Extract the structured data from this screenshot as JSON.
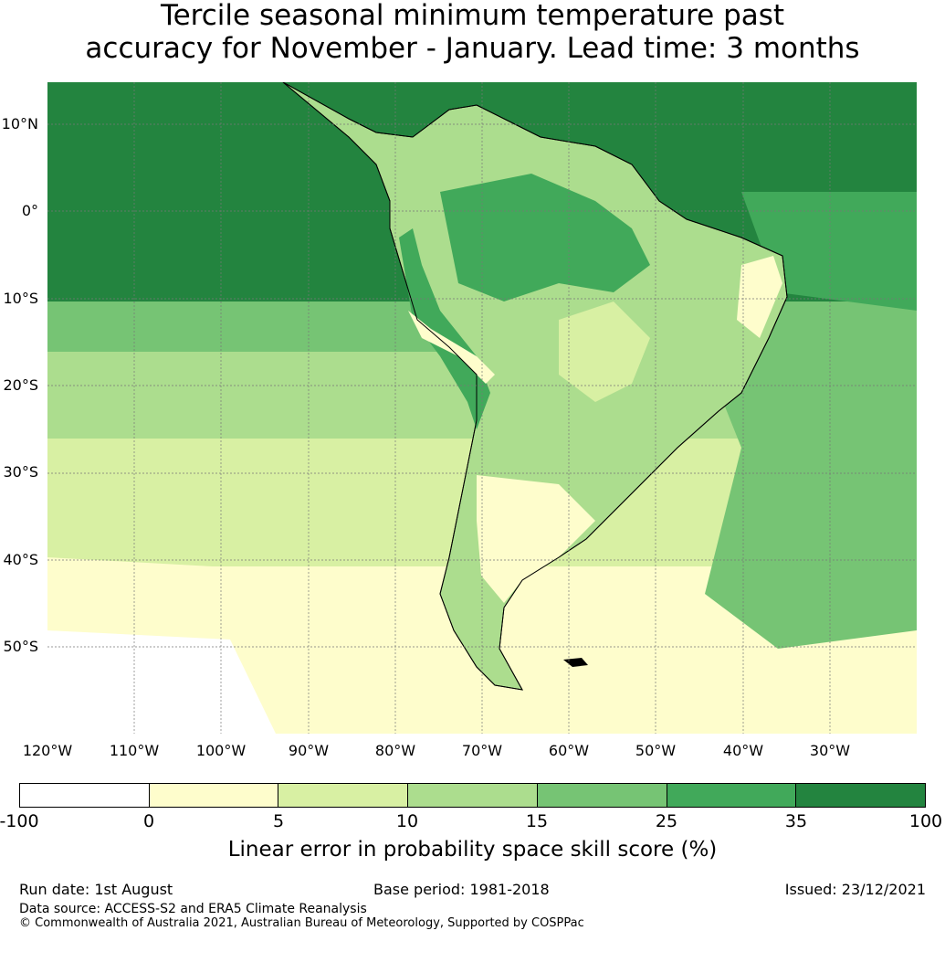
{
  "title": {
    "line1": "Tercile seasonal minimum temperature past",
    "line2": "accuracy for November - January. Lead time: 3 months"
  },
  "map": {
    "latitude_labels": [
      "10°N",
      "0°",
      "10°S",
      "20°S",
      "30°S",
      "40°S",
      "50°S"
    ],
    "longitude_labels": [
      "120°W",
      "110°W",
      "100°W",
      "90°W",
      "80°W",
      "70°W",
      "60°W",
      "50°W",
      "40°W",
      "30°W"
    ],
    "colors": {
      "ocean_north": "#23843f",
      "ocean_band": "#41a95a",
      "ocean_mid": "#76c474",
      "ocean_south": "#d8f0a3",
      "ocean_far_south": "#ffffff",
      "land_high": "#41a95a",
      "land_mid": "#acdd8e",
      "land_low": "#fefdcc"
    }
  },
  "colorbar": {
    "tick_labels": [
      "-100",
      "0",
      "5",
      "10",
      "15",
      "25",
      "35",
      "100"
    ],
    "colors": [
      "#ffffff",
      "#fefdcc",
      "#d8f0a3",
      "#acdd8e",
      "#76c474",
      "#41a95a",
      "#23843f"
    ],
    "label": "Linear error in probability space skill score (%)"
  },
  "footer": {
    "run_date": "Run date: 1st August",
    "base_period": "Base period: 1981-2018",
    "issued": "Issued: 23/12/2021",
    "data_source": "Data source: ACCESS-S2 and ERA5 Climate Reanalysis",
    "copyright": "© Commonwealth of Australia 2021, Australian Bureau of Meteorology, Supported by COSPPac"
  }
}
